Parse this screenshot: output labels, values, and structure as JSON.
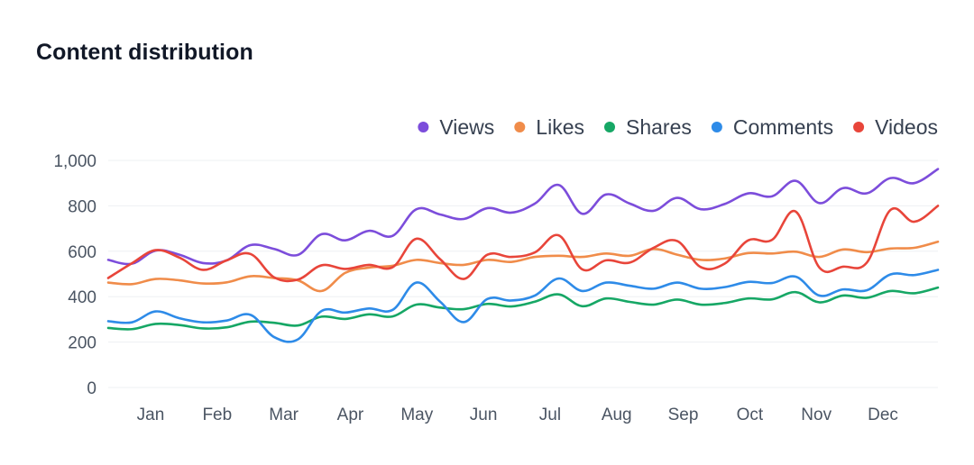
{
  "chart_data": {
    "type": "line",
    "title": "Content distribution",
    "xlabel": "",
    "ylabel": "",
    "ylim": [
      0,
      1000
    ],
    "yticks": [
      0,
      200,
      400,
      600,
      800,
      1000
    ],
    "ytick_labels": [
      "0",
      "200",
      "400",
      "600",
      "800",
      "1,000"
    ],
    "month_labels": [
      "Jan",
      "Feb",
      "Mar",
      "Apr",
      "May",
      "Jun",
      "Jul",
      "Aug",
      "Sep",
      "Oct",
      "Nov",
      "Dec"
    ],
    "grid": true,
    "legend_position": "top-right",
    "series": [
      {
        "name": "Views",
        "color": "#7c4ddb",
        "values": [
          562,
          545,
          603,
          585,
          548,
          560,
          627,
          610,
          584,
          675,
          648,
          690,
          668,
          785,
          762,
          742,
          790,
          770,
          810,
          892,
          765,
          850,
          810,
          778,
          835,
          785,
          808,
          855,
          842,
          910,
          812,
          878,
          855,
          922,
          900,
          962
        ]
      },
      {
        "name": "Likes",
        "color": "#f08c4a",
        "values": [
          462,
          455,
          478,
          472,
          458,
          463,
          490,
          482,
          472,
          425,
          505,
          528,
          536,
          562,
          548,
          540,
          562,
          553,
          575,
          580,
          575,
          590,
          580,
          610,
          585,
          562,
          568,
          592,
          590,
          598,
          575,
          608,
          596,
          612,
          615,
          642
        ]
      },
      {
        "name": "Shares",
        "color": "#16a765",
        "values": [
          262,
          257,
          280,
          275,
          260,
          265,
          290,
          285,
          273,
          312,
          302,
          322,
          313,
          365,
          352,
          345,
          368,
          357,
          378,
          410,
          358,
          392,
          377,
          365,
          387,
          365,
          372,
          392,
          388,
          420,
          375,
          405,
          395,
          425,
          415,
          440
        ]
      },
      {
        "name": "Comments",
        "color": "#2e8be8",
        "values": [
          292,
          287,
          335,
          305,
          287,
          295,
          320,
          222,
          212,
          337,
          330,
          348,
          342,
          462,
          378,
          288,
          390,
          383,
          405,
          480,
          425,
          462,
          448,
          435,
          462,
          435,
          442,
          465,
          460,
          488,
          405,
          432,
          428,
          498,
          495,
          518
        ]
      },
      {
        "name": "Videos",
        "color": "#e8453a",
        "values": [
          482,
          547,
          605,
          572,
          518,
          560,
          588,
          485,
          475,
          538,
          522,
          540,
          530,
          655,
          565,
          478,
          585,
          575,
          595,
          670,
          520,
          560,
          550,
          615,
          645,
          530,
          545,
          648,
          650,
          775,
          528,
          532,
          550,
          782,
          730,
          800
        ]
      }
    ]
  }
}
